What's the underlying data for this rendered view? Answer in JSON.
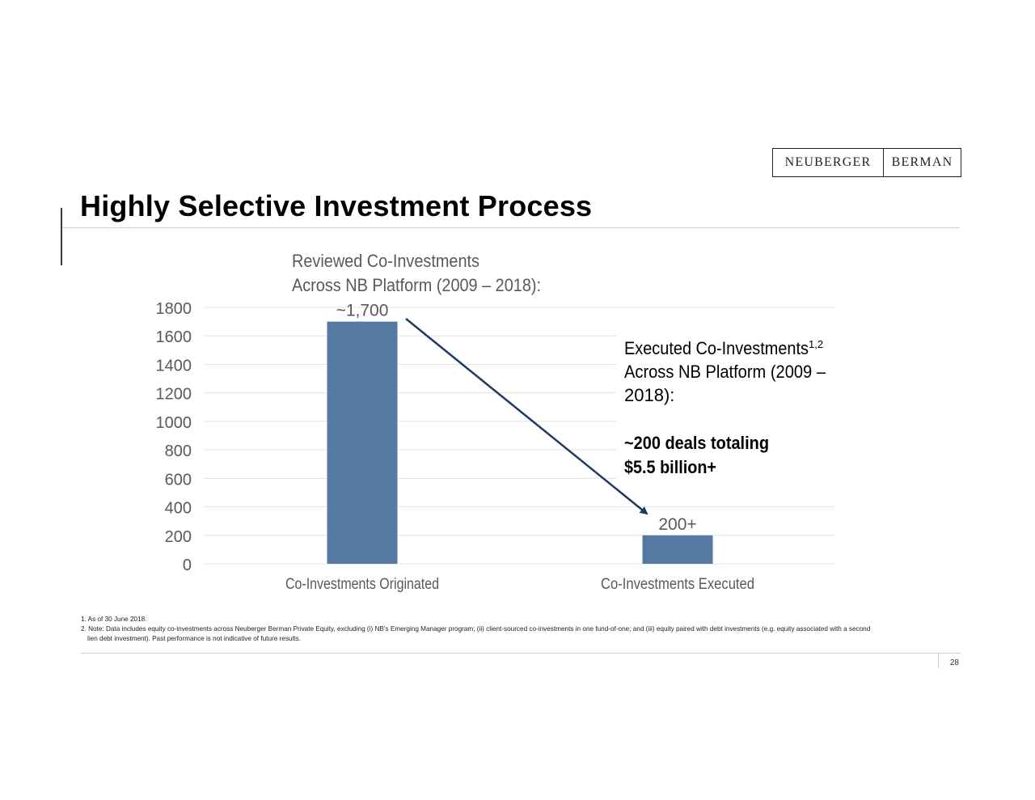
{
  "brand": {
    "word1": "NEUBERGER",
    "word2": "BERMAN"
  },
  "title": "Highly Selective Investment Process",
  "chart_data": {
    "type": "bar",
    "categories": [
      "Co-Investments Originated",
      "Co-Investments Executed"
    ],
    "values": [
      1700,
      200
    ],
    "value_labels": [
      "~1,700",
      "200+"
    ],
    "ylim": [
      0,
      1800
    ],
    "yticks": [
      0,
      200,
      400,
      600,
      800,
      1000,
      1200,
      1400,
      1600,
      1800
    ],
    "grid": true,
    "bar_color": "#5479a3",
    "annotations": {
      "reviewed_line1": "Reviewed Co-Investments",
      "reviewed_line2": "Across NB Platform (2009 – 2018):",
      "executed_line1": "Executed Co-Investments",
      "executed_sup": "1,2",
      "executed_line2": "Across NB Platform (2009 –",
      "executed_line3": "2018):",
      "deals_line1": "~200 deals totaling",
      "deals_line2": "$5.5 billion+"
    },
    "arrow_color": "#1f3a5f"
  },
  "footnotes": {
    "note1": "1. As of 30 June 2018.",
    "note2": "2. Note: Data includes equity co-investments across Neuberger Berman Private Equity, excluding (i) NB’s Emerging Manager program; (ii) client-sourced co-investments in one fund-of-one; and (iii) equity paired with debt investments (e.g. equity associated with a second",
    "note2_cont": "lien debt investment). Past performance is not indicative of future results."
  },
  "page_number": "28"
}
